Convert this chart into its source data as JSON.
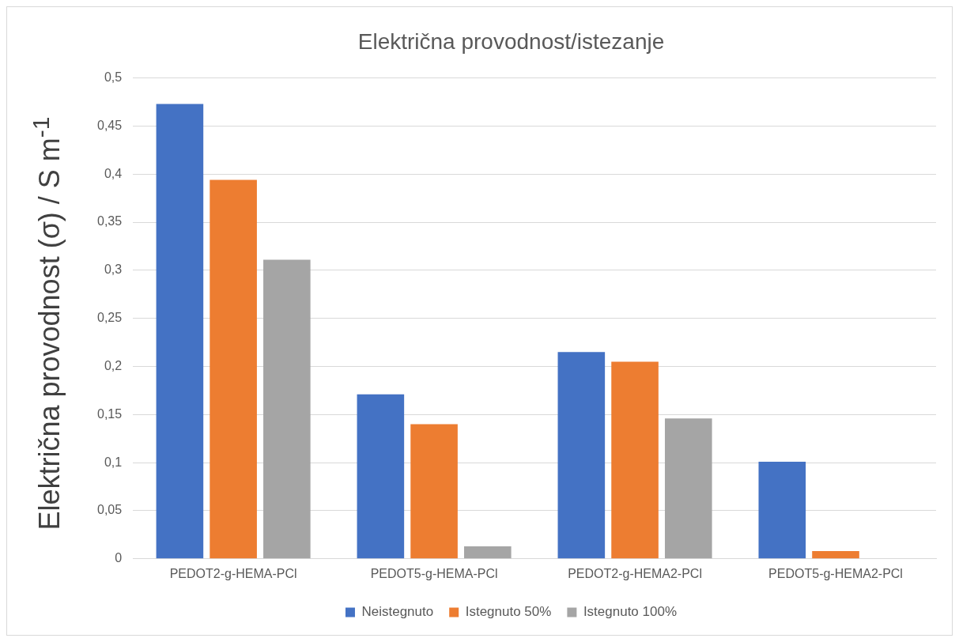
{
  "chart_data": {
    "type": "bar",
    "title": "Električna provodnost/istezanje",
    "ylabel": "Električna provodnost (σ) / S m$^{-1}$",
    "categories": [
      "PEDOT2-g-HEMA-PCl",
      "PEDOT5-g-HEMA-PCl",
      "PEDOT2-g-HEMA2-PCl",
      "PEDOT5-g-HEMA2-PCl"
    ],
    "series": [
      {
        "name": "Neistegnuto",
        "color": "#4472c4",
        "values": [
          0.473,
          0.171,
          0.215,
          0.101
        ]
      },
      {
        "name": "Istegnuto 50%",
        "color": "#ed7d31",
        "values": [
          0.394,
          0.14,
          0.205,
          0.008
        ]
      },
      {
        "name": "Istegnuto 100%",
        "color": "#a5a5a5",
        "values": [
          0.311,
          0.013,
          0.146,
          0
        ]
      }
    ],
    "ylim": [
      0,
      0.5
    ],
    "yticks": [
      0,
      {
        "value": 0.05,
        "label": "0,05"
      },
      {
        "value": 0.1,
        "label": "0,1"
      },
      {
        "value": 0.15,
        "label": "0,15"
      },
      {
        "value": 0.2,
        "label": "0,2"
      },
      {
        "value": 0.25,
        "label": "0,25"
      },
      {
        "value": 0.3,
        "label": "0,3"
      },
      {
        "value": 0.35,
        "label": "0,35"
      },
      {
        "value": 0.4,
        "label": "0,4"
      },
      {
        "value": 0.45,
        "label": "0,45"
      },
      {
        "value": 0.5,
        "label": "0,5"
      }
    ],
    "grid": "y",
    "legend": "bottom"
  }
}
